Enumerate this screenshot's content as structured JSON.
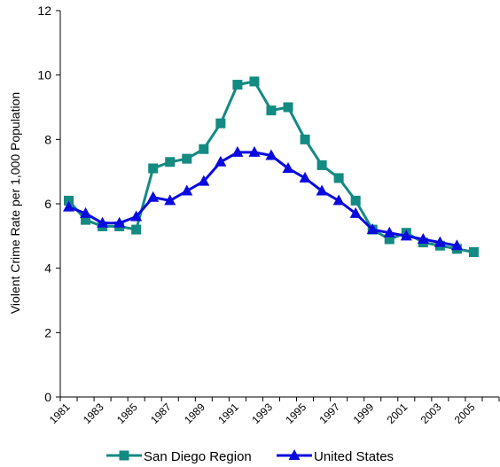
{
  "chart_data": {
    "type": "line",
    "title": "",
    "xlabel": "",
    "ylabel": "Violent Crime Rate per 1,000 Population",
    "x": [
      1981,
      1982,
      1983,
      1984,
      1985,
      1986,
      1987,
      1988,
      1989,
      1990,
      1991,
      1992,
      1993,
      1994,
      1995,
      1996,
      1997,
      1998,
      1999,
      2000,
      2001,
      2002,
      2003,
      2004,
      2005,
      2006
    ],
    "x_tick_labels": [
      "1981",
      "1983",
      "1985",
      "1987",
      "1989",
      "1991",
      "1993",
      "1995",
      "1997",
      "1999",
      "2001",
      "2003",
      "2005"
    ],
    "y_ticks": [
      0,
      2,
      4,
      6,
      8,
      10,
      12
    ],
    "ylim": [
      0,
      12
    ],
    "grid": false,
    "legend_position": "bottom",
    "series": [
      {
        "name": "San Diego Region",
        "color": "#138a82",
        "marker": "square",
        "values": [
          6.1,
          5.5,
          5.3,
          5.3,
          5.2,
          7.1,
          7.3,
          7.4,
          7.7,
          8.5,
          9.7,
          9.8,
          8.9,
          9.0,
          8.0,
          7.2,
          6.8,
          6.1,
          5.2,
          4.9,
          5.1,
          4.8,
          4.7,
          4.6,
          4.5,
          null
        ]
      },
      {
        "name": "United States",
        "color": "#0a0ae0",
        "marker": "triangle",
        "values": [
          5.9,
          5.7,
          5.4,
          5.4,
          5.6,
          6.2,
          6.1,
          6.4,
          6.7,
          7.3,
          7.6,
          7.6,
          7.5,
          7.1,
          6.8,
          6.4,
          6.1,
          5.7,
          5.2,
          5.1,
          5.0,
          4.9,
          4.8,
          4.7,
          null,
          null
        ]
      }
    ]
  }
}
